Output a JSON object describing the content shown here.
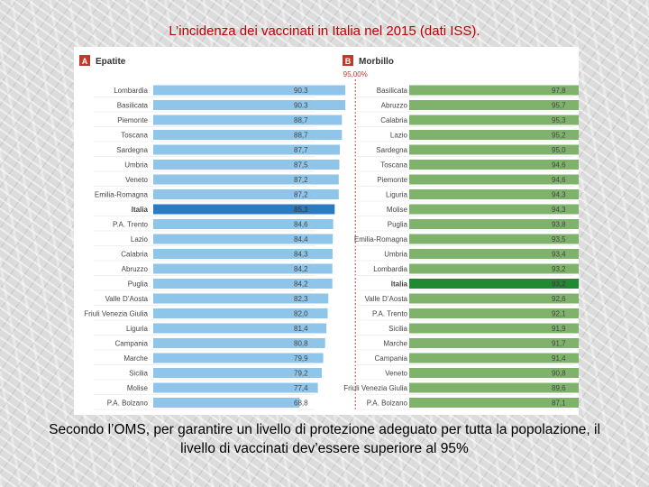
{
  "title": "L’incidenza dei vaccinati in Italia nel 2015 (dati ISS).",
  "caption": "Secondo l’OMS, per garantire un livello di protezione adeguato per tutta la popolazione, il livello di vaccinati dev’essere superiore al 95%",
  "colors": {
    "title": "#c00000",
    "badge": "#c0392b",
    "epatite_bar": "#8ec5e8",
    "epatite_highlight": "#2a7bbf",
    "morbillo_bar": "#7fb26b",
    "morbillo_highlight": "#1e8a34",
    "threshold": "#c0392b"
  },
  "chart_data": [
    {
      "type": "bar",
      "orientation": "horizontal",
      "badge": "A",
      "title": "Epatite",
      "threshold": {
        "value": 95,
        "label": "95,00%"
      },
      "xlim": [
        0,
        100
      ],
      "highlight": "Italia",
      "categories": [
        "Lombardia",
        "Basilicata",
        "Piemonte",
        "Toscana",
        "Sardegna",
        "Umbria",
        "Veneto",
        "Emilia-Romagna",
        "Italia",
        "P.A. Trento",
        "Lazio",
        "Calabria",
        "Abruzzo",
        "Puglia",
        "Valle D’Aosta",
        "Friuli Venezia Giulia",
        "Liguria",
        "Campania",
        "Marche",
        "Sicilia",
        "Molise",
        "P.A. Bolzano"
      ],
      "values": [
        90.3,
        90.3,
        88.7,
        88.7,
        87.7,
        87.5,
        87.2,
        87.2,
        85.3,
        84.6,
        84.4,
        84.3,
        84.2,
        84.2,
        82.3,
        82.0,
        81.4,
        80.8,
        79.9,
        79.2,
        77.4,
        68.8
      ],
      "labels": [
        "90.3",
        "90.3",
        "88,7",
        "88,7",
        "87,7",
        "87,5",
        "87,2",
        "87,2",
        "85,3",
        "84,6",
        "84,4",
        "84,3",
        "84,2",
        "84,2",
        "82,3",
        "82,0",
        "81,4",
        "80,8",
        "79,9",
        "79,2",
        "77,4",
        "68,8"
      ]
    },
    {
      "type": "bar",
      "orientation": "horizontal",
      "badge": "B",
      "title": "Morbillo",
      "threshold": {
        "value": 95,
        "label": "95,00%"
      },
      "xlim": [
        0,
        100
      ],
      "highlight": "Italia",
      "categories": [
        "Basilicata",
        "Abruzzo",
        "Calabria",
        "Lazio",
        "Sardegna",
        "Toscana",
        "Piemonte",
        "Liguria",
        "Molise",
        "Puglia",
        "Emilia-Romagna",
        "Umbria",
        "Lombardia",
        "Italia",
        "Valle D’Aosta",
        "P.A. Trento",
        "Sicilia",
        "Marche",
        "Campania",
        "Veneto",
        "Friuli Venezia Giulia",
        "P.A. Bolzano"
      ],
      "values": [
        97.8,
        95.7,
        95.3,
        95.2,
        95.0,
        94.6,
        94.6,
        94.3,
        94.3,
        93.8,
        93.5,
        93.4,
        93.2,
        93.2,
        92.6,
        92.1,
        91.9,
        91.7,
        91.4,
        90.8,
        89.6,
        87.1
      ],
      "labels": [
        "97,8",
        "95,7",
        "95,3",
        "95,2",
        "95,0",
        "94,6",
        "94,6",
        "94,3",
        "94,3",
        "93,8",
        "93,5",
        "93,4",
        "93,2",
        "93,2",
        "92,6",
        "92,1",
        "91,9",
        "91,7",
        "91,4",
        "90,8",
        "89,6",
        "87,1"
      ]
    }
  ]
}
